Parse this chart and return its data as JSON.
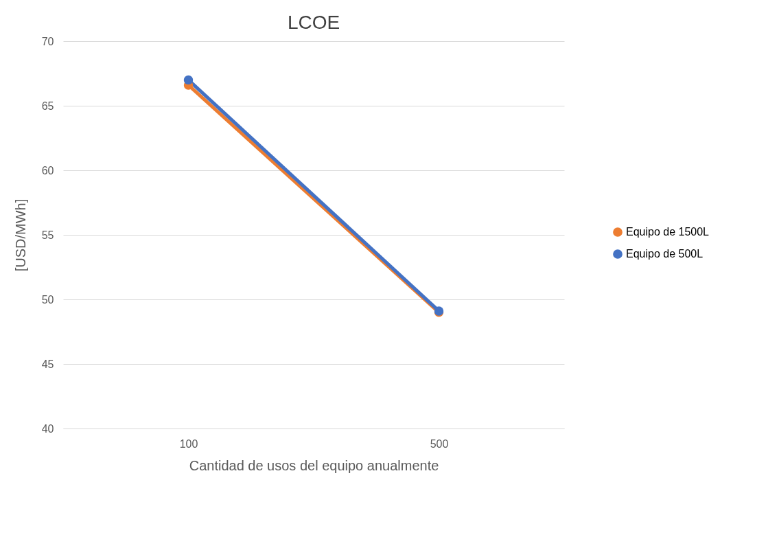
{
  "chart_data": {
    "type": "line",
    "title": "LCOE",
    "xlabel": "Cantidad de usos del equipo anualmente",
    "ylabel": "[USD/MWh]",
    "categories": [
      "100",
      "500"
    ],
    "series": [
      {
        "name": "Equipo de 1500L",
        "color": "#ed7d31",
        "values": [
          66.6,
          49.0
        ]
      },
      {
        "name": "Equipo de 500L",
        "color": "#4472c4",
        "values": [
          67.0,
          49.1
        ]
      }
    ],
    "ylim": [
      40,
      70
    ],
    "yticks": [
      40,
      45,
      50,
      55,
      60,
      65,
      70
    ],
    "grid": "y",
    "legend": "right",
    "marker": "circle",
    "line_style": "solid"
  }
}
